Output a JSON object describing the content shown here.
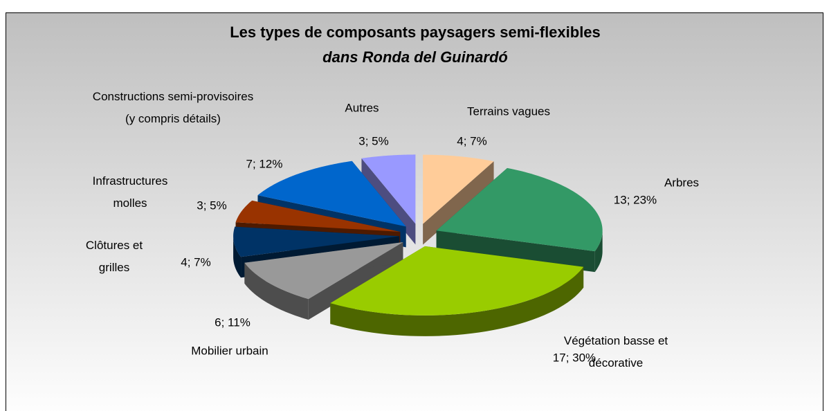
{
  "chart_data": {
    "type": "pie",
    "title": [
      "Les types de composants paysagers semi-flexibles",
      "dans Ronda del Guinardó"
    ],
    "categories": [
      "Terrains vagues",
      "Arbres",
      "Végétation basse et\ndécorative",
      "Mobilier urbain",
      "Clôtures et\ngrilles",
      "Infrastructures\nmolles",
      "Constructions semi-provisoires\n(y compris détails)",
      "Autres"
    ],
    "values": [
      4,
      13,
      17,
      6,
      4,
      3,
      7,
      3
    ],
    "value_labels": [
      "4; 7%",
      "13; 23%",
      "17; 30%",
      "6; 11%",
      "4; 7%",
      "3; 5%",
      "7; 12%",
      "3; 5%"
    ],
    "colors": [
      "#ffcc99",
      "#339966",
      "#99cc00",
      "#999999",
      "#003366",
      "#993300",
      "#0066cc",
      "#9999ff"
    ]
  }
}
